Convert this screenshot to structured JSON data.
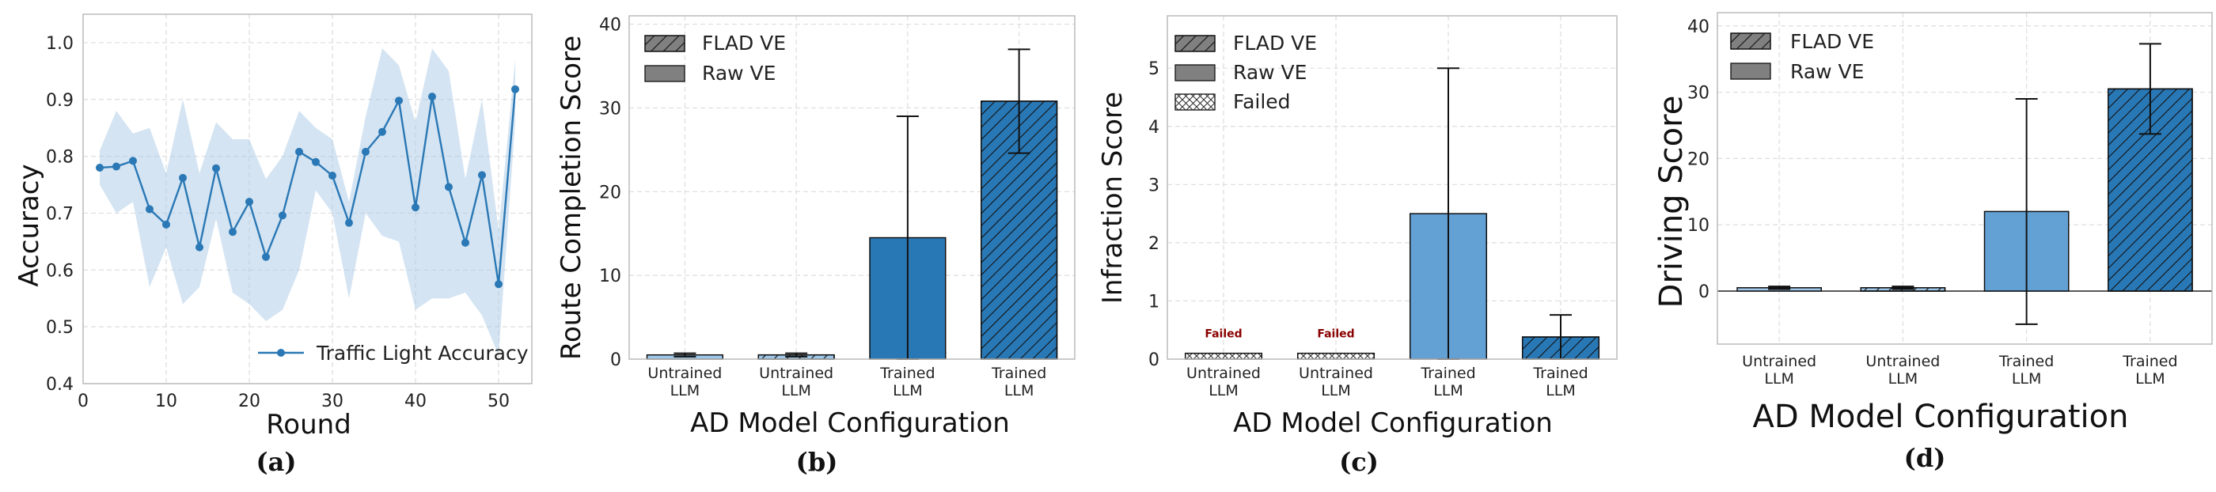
{
  "colors": {
    "line": "#2a78b5",
    "band": "#a9c9e6",
    "bar_dark": "#2978b6",
    "bar_light": "#63a1d5",
    "bar_pale": "#9fc8ea",
    "legend_fill": "#808080",
    "failed": "#8b0000",
    "grid": "#dddddd"
  },
  "chart_data": [
    {
      "type": "line",
      "panel": "(a)",
      "title": "",
      "xlabel": "Round",
      "ylabel": "Accuracy",
      "xlim": [
        0,
        54
      ],
      "ylim": [
        0.4,
        1.05
      ],
      "xticks": [
        0,
        10,
        20,
        30,
        40,
        50
      ],
      "yticks": [
        0.4,
        0.5,
        0.6,
        0.7,
        0.8,
        0.9,
        1.0
      ],
      "legend": [
        "Traffic Light Accuracy"
      ],
      "legend_position": "lower-right",
      "series": [
        {
          "name": "Traffic Light Accuracy",
          "x": [
            2,
            4,
            6,
            8,
            10,
            12,
            14,
            16,
            18,
            20,
            22,
            24,
            26,
            28,
            30,
            32,
            34,
            36,
            38,
            40,
            42,
            44,
            46,
            48,
            50,
            52
          ],
          "y": [
            0.78,
            0.782,
            0.792,
            0.707,
            0.68,
            0.762,
            0.64,
            0.779,
            0.667,
            0.72,
            0.623,
            0.696,
            0.808,
            0.79,
            0.766,
            0.683,
            0.808,
            0.843,
            0.898,
            0.71,
            0.905,
            0.746,
            0.648,
            0.767,
            0.575,
            0.918
          ],
          "lower": [
            0.75,
            0.7,
            0.72,
            0.57,
            0.64,
            0.54,
            0.57,
            0.69,
            0.56,
            0.54,
            0.51,
            0.53,
            0.6,
            0.74,
            0.7,
            0.55,
            0.7,
            0.66,
            0.65,
            0.53,
            0.55,
            0.55,
            0.56,
            0.52,
            0.45,
            0.86
          ],
          "upper": [
            0.81,
            0.88,
            0.84,
            0.85,
            0.77,
            0.9,
            0.77,
            0.86,
            0.83,
            0.83,
            0.76,
            0.8,
            0.88,
            0.85,
            0.83,
            0.72,
            0.87,
            0.99,
            0.96,
            0.86,
            0.99,
            0.95,
            0.76,
            0.9,
            0.67,
            0.97
          ]
        }
      ]
    },
    {
      "type": "bar",
      "panel": "(b)",
      "title": "",
      "xlabel": "AD Model Configuration",
      "ylabel": "Route Completion Score",
      "ylim": [
        0,
        41
      ],
      "yticks": [
        0,
        10,
        20,
        30,
        40
      ],
      "categories": [
        "Untrained\nLLM",
        "Untrained\nLLM",
        "Trained\nLLM",
        "Trained\nLLM"
      ],
      "values": [
        0.5,
        0.5,
        14.5,
        30.8
      ],
      "errors": [
        0.2,
        0.2,
        14.5,
        6.2
      ],
      "hatched": [
        false,
        true,
        false,
        true
      ],
      "bar_colors": [
        "pale",
        "pale",
        "dark",
        "dark"
      ],
      "legend": [
        "FLAD VE",
        "Raw VE"
      ],
      "legend_position": "top-left"
    },
    {
      "type": "bar",
      "panel": "(c)",
      "title": "",
      "xlabel": "AD Model Configuration",
      "ylabel": "Infraction Score",
      "ylim": [
        0,
        5.9
      ],
      "yticks": [
        0,
        1,
        2,
        3,
        4,
        5
      ],
      "categories": [
        "Untrained\nLLM",
        "Untrained\nLLM",
        "Trained\nLLM",
        "Trained\nLLM"
      ],
      "values": [
        0.1,
        0.1,
        2.5,
        0.38
      ],
      "errors": [
        0,
        0,
        2.5,
        0.38
      ],
      "hatched": [
        false,
        false,
        false,
        true
      ],
      "bar_colors": [
        "failed",
        "failed",
        "light",
        "dark"
      ],
      "annotations": [
        "Failed",
        "Failed",
        "",
        ""
      ],
      "legend": [
        "FLAD VE",
        "Raw VE",
        "Failed"
      ],
      "legend_position": "top-left"
    },
    {
      "type": "bar",
      "panel": "(d)",
      "title": "",
      "xlabel": "AD Model Configuration",
      "ylabel": "Driving Score",
      "ylim": [
        -8,
        42
      ],
      "yticks": [
        0,
        10,
        20,
        30,
        40
      ],
      "categories": [
        "Untrained\nLLM",
        "Untrained\nLLM",
        "Trained\nLLM",
        "Trained\nLLM"
      ],
      "values": [
        0.5,
        0.5,
        12,
        30.5
      ],
      "errors": [
        0.2,
        0.2,
        17,
        6.8
      ],
      "hatched": [
        false,
        true,
        false,
        true
      ],
      "bar_colors": [
        "pale",
        "pale",
        "light",
        "dark"
      ],
      "legend": [
        "FLAD VE",
        "Raw VE"
      ],
      "legend_position": "top-left"
    }
  ]
}
